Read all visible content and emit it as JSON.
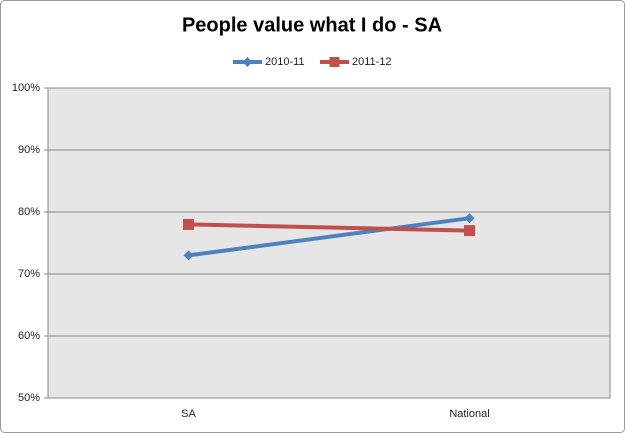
{
  "chart_data": {
    "type": "line",
    "title": "People value what I do - SA",
    "categories": [
      "SA",
      "National"
    ],
    "series": [
      {
        "name": "2010-11",
        "color": "#4f81bd",
        "marker": "diamond",
        "values": [
          73,
          79
        ]
      },
      {
        "name": "2011-12",
        "color": "#c0504d",
        "marker": "square",
        "values": [
          78,
          77
        ]
      }
    ],
    "ylim": [
      50,
      100
    ],
    "yticks": [
      {
        "value": 50,
        "label": "50%"
      },
      {
        "value": 60,
        "label": "60%"
      },
      {
        "value": 70,
        "label": "70%"
      },
      {
        "value": 80,
        "label": "80%"
      },
      {
        "value": 90,
        "label": "90%"
      },
      {
        "value": 100,
        "label": "100%"
      }
    ],
    "grid": true,
    "legend": "top"
  }
}
